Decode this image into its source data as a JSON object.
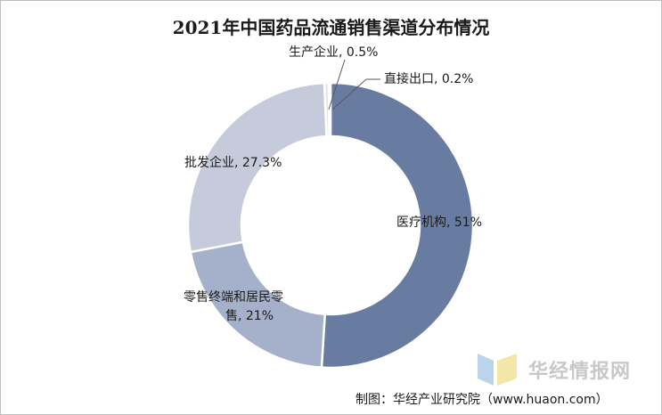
{
  "chart_data": {
    "type": "pie",
    "title": "2021年中国药品流通销售渠道分布情况",
    "slices": [
      {
        "label": "医疗机构",
        "value": 51,
        "value_label": "51%",
        "color": "#687ba0"
      },
      {
        "label": "零售终端和居民零售",
        "value": 21,
        "value_label": "21%",
        "color": "#a5b1ca"
      },
      {
        "label": "批发企业",
        "value": 27.3,
        "value_label": "27.3%",
        "color": "#c5cbdb"
      },
      {
        "label": "生产企业",
        "value": 0.5,
        "value_label": "0.5%",
        "color": "#e2e5ec"
      },
      {
        "label": "直接出口",
        "value": 0.2,
        "value_label": "0.2%",
        "color": "#eef0f4"
      }
    ],
    "legend": "none"
  },
  "labels": {
    "l0": "医疗机构, 51%",
    "l1a": "零售终端和居民零",
    "l1b": "售, 21%",
    "l2": "批发企业, 27.3%",
    "l3": "生产企业, 0.5%",
    "l4": "直接出口, 0.2%"
  },
  "watermark": "华经情报网",
  "credit": "制图：华经产业研究院（www.huaon.com）"
}
